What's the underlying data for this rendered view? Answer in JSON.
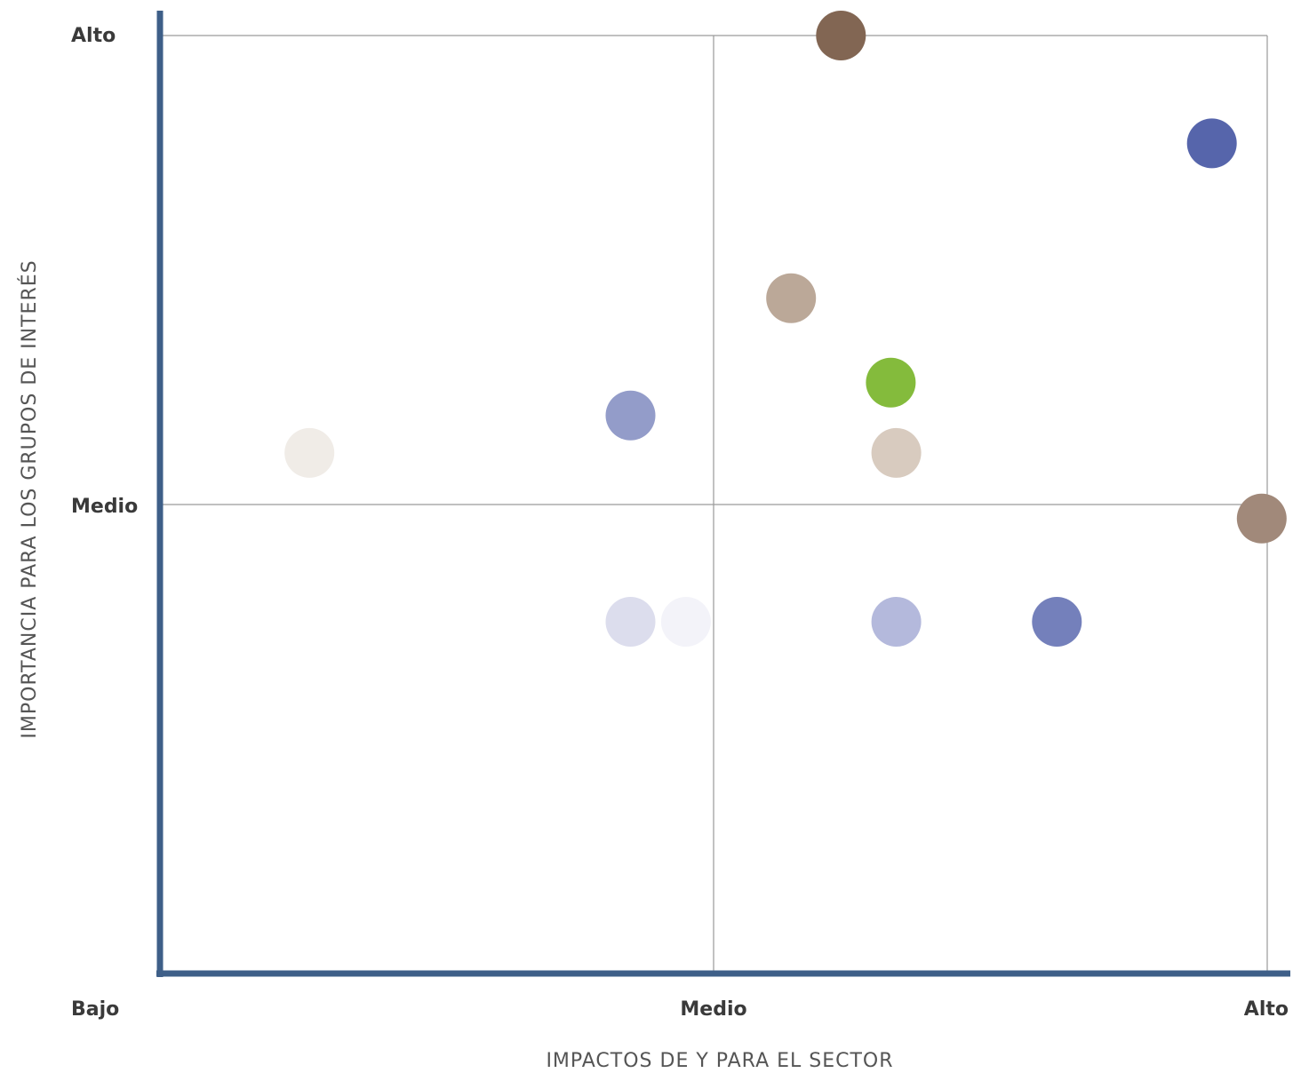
{
  "chart_data": {
    "type": "scatter",
    "xlabel": "IMPACTOS DE Y PARA EL SECTOR",
    "ylabel": "IMPORTANCIA PARA LOS GRUPOS DE INTERÉS",
    "x_ticks": [
      "Bajo",
      "Medio",
      "Alto"
    ],
    "y_ticks": [
      "Medio",
      "Alto"
    ],
    "xlim": [
      0,
      2
    ],
    "ylim": [
      0,
      2
    ],
    "grid": true,
    "points": [
      {
        "x": 1.23,
        "y": 2.0,
        "color": "#826653"
      },
      {
        "x": 1.9,
        "y": 1.77,
        "color": "#5665ab"
      },
      {
        "x": 1.14,
        "y": 1.44,
        "color": "#bba898"
      },
      {
        "x": 1.32,
        "y": 1.26,
        "color": "#84bb3c"
      },
      {
        "x": 0.85,
        "y": 1.19,
        "color": "#939cc9"
      },
      {
        "x": 0.27,
        "y": 1.11,
        "color": "#f0ece7"
      },
      {
        "x": 1.33,
        "y": 1.11,
        "color": "#d8cbbf"
      },
      {
        "x": 1.99,
        "y": 0.97,
        "color": "#a1897a"
      },
      {
        "x": 0.85,
        "y": 0.75,
        "color": "#dcdded"
      },
      {
        "x": 0.95,
        "y": 0.75,
        "color": "#f3f3f9"
      },
      {
        "x": 1.33,
        "y": 0.75,
        "color": "#b4b9dc"
      },
      {
        "x": 1.62,
        "y": 0.75,
        "color": "#7480bb"
      }
    ]
  }
}
